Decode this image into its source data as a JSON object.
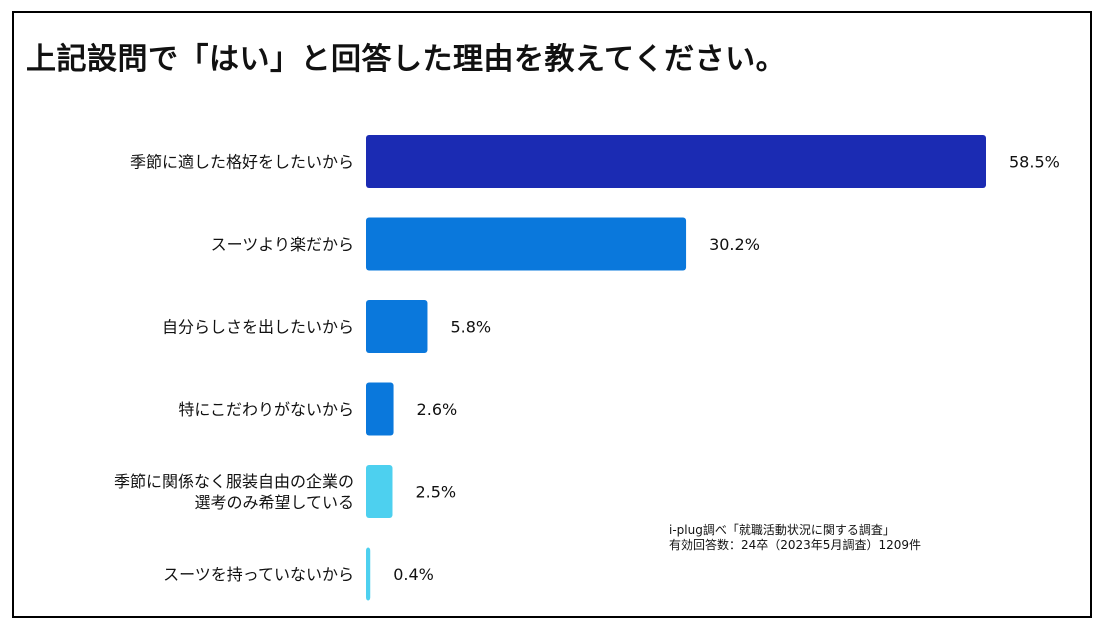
{
  "title": "上記設問で「はい」と回答した理由を教えてください。",
  "chart_data": {
    "type": "bar",
    "orientation": "horizontal",
    "categories": [
      [
        "季節に適した格好をしたいから"
      ],
      [
        "スーツより楽だから"
      ],
      [
        "自分らしさを出したいから"
      ],
      [
        "特にこだわりがないから"
      ],
      [
        "季節に関係なく服装自由の企業の",
        "選考のみ希望している"
      ],
      [
        "スーツを持っていないから"
      ]
    ],
    "values": [
      58.5,
      30.2,
      5.8,
      2.6,
      2.5,
      0.4
    ],
    "value_labels": [
      "58.5%",
      "30.2%",
      "5.8%",
      "2.6%",
      "2.5%",
      "0.4%"
    ],
    "unit": "%",
    "colors": [
      "#1b2bb3",
      "#0a78dc",
      "#0a78dc",
      "#0a78dc",
      "#4dd0ef",
      "#4dd0ef"
    ],
    "xlim": [
      0,
      58.5
    ],
    "grid": false,
    "legend": "none"
  },
  "source_note": {
    "line1": "i-plug調べ「就職活動状況に関する調査」",
    "line2": "有効回答数：24卒（2023年5月調査）1209件"
  }
}
